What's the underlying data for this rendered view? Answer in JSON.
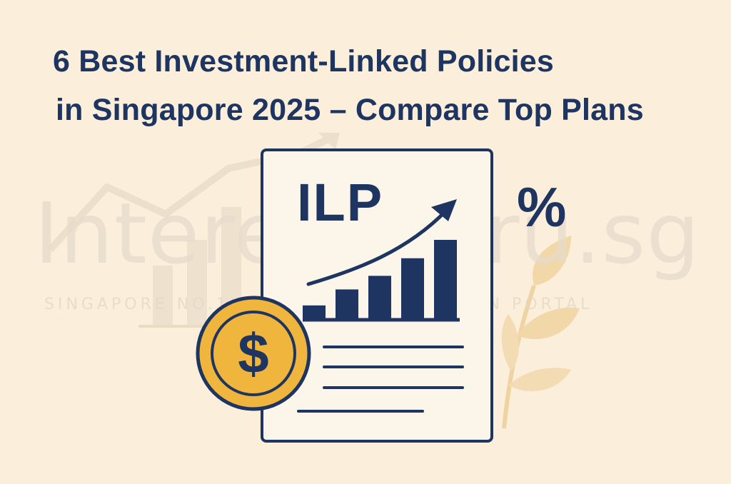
{
  "title": {
    "line1": "6 Best Investment-Linked Policies",
    "line2": "in Singapore 2025 – Compare Top Plans"
  },
  "watermark": {
    "brand": "InterestGuru.sg",
    "tagline": "SINGAPORE NO.1 FINANCIAL COMPARISON PORTAL"
  },
  "illustration": {
    "document_label": "ILP",
    "percent_symbol": "%",
    "coin_symbol": "$",
    "bar_levels": [
      0.18,
      0.38,
      0.55,
      0.77,
      1.0
    ]
  },
  "colors": {
    "background": "#fbefdc",
    "navy": "#1d3560",
    "coin_gold": "#f0b53c",
    "paper": "#fcf5ea",
    "leaf": "#f2d7a8",
    "watermark": "#e6dccb"
  }
}
